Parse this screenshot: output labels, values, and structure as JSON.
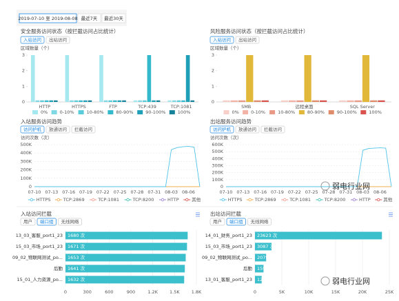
{
  "toolbar": {
    "date_range": "2019-07-10 至 2019-08-08",
    "buttons": [
      "最近7天",
      "最近30天"
    ]
  },
  "watermark": "弱电行业网",
  "chart_data": [
    {
      "type": "bar",
      "title": "安全服务访问状态（按拦截访问占比统计）",
      "tabs": [
        "入站访问",
        "出站访问"
      ],
      "selected_tab": 0,
      "ylabel": "区域数量（个）",
      "categories": [
        "HTTP",
        "HTTPS",
        "FTP",
        "TCP:439",
        "TCP:1081"
      ],
      "series": [
        {
          "name": "0%",
          "color": "#a6e8ef",
          "values": [
            3,
            3,
            3,
            0.1,
            0.1
          ]
        },
        {
          "name": "0-10%",
          "color": "#7ed8e3",
          "values": [
            0.1,
            0.1,
            0.1,
            0.1,
            0.1
          ]
        },
        {
          "name": "10-80%",
          "color": "#5ccbd9",
          "values": [
            0.1,
            0.1,
            0.1,
            0.1,
            0.1
          ]
        },
        {
          "name": "80-90%",
          "color": "#34b9cc",
          "values": [
            0.1,
            0.1,
            0.1,
            3,
            0.1
          ]
        },
        {
          "name": "90-100%",
          "color": "#1fa0b7",
          "values": [
            0.1,
            0.1,
            0.1,
            0.1,
            3
          ]
        },
        {
          "name": "100%",
          "color": "#17839a",
          "values": [
            0.1,
            0.1,
            0.1,
            0.1,
            0.1
          ]
        }
      ],
      "ylim": [
        0,
        3
      ],
      "yticks": [
        0,
        1,
        2,
        3
      ],
      "grid": false
    },
    {
      "type": "bar",
      "title": "风险服务访问状态（按拦截访问占比统计）",
      "tabs": [
        "入站访问",
        "出站访问"
      ],
      "selected_tab": 0,
      "ylabel": "区域数量（个）",
      "categories": [
        "SMB",
        "远程桌面",
        "SQL Server"
      ],
      "series": [
        {
          "name": "0%",
          "color": "#f6cfc8",
          "values": [
            0.1,
            0.1,
            0.1
          ]
        },
        {
          "name": "0-10%",
          "color": "#f2b3a6",
          "values": [
            0.1,
            0.1,
            0.1
          ]
        },
        {
          "name": "10-80%",
          "color": "#e99a86",
          "values": [
            0.1,
            0.1,
            0.1
          ]
        },
        {
          "name": "80-90%",
          "color": "#e2b83a",
          "values": [
            3,
            3,
            3
          ]
        },
        {
          "name": "90-100%",
          "color": "#e08b6a",
          "values": [
            0.1,
            0.1,
            0.1
          ]
        },
        {
          "name": "100%",
          "color": "#d9534f",
          "values": [
            0.1,
            0.1,
            0.1
          ]
        }
      ],
      "ylim": [
        0,
        3
      ],
      "yticks": [
        0,
        1,
        2,
        3
      ],
      "grid": false
    },
    {
      "type": "line",
      "title": "入站服务访问趋势",
      "tabs": [
        "访问护机",
        "放通访问",
        "拦截访问"
      ],
      "selected_tab": 0,
      "ylabel": "访问次数（次）",
      "categories": [
        "07-10",
        null,
        null,
        "07-13",
        null,
        null,
        "07-16",
        null,
        null,
        "07-19",
        null,
        null,
        "07-22",
        null,
        null,
        "07-25",
        null,
        null,
        "07-28",
        null,
        null,
        "07-31",
        null,
        null,
        "08-03",
        null,
        null,
        "08-06",
        null,
        null
      ],
      "series": [
        {
          "name": "HTTPS",
          "color": "#4fc3e8",
          "values": [
            0,
            0,
            0,
            0,
            0,
            0,
            0,
            0,
            0,
            0,
            0,
            0,
            0,
            0,
            0,
            0,
            0,
            0,
            0,
            0,
            0,
            0,
            0,
            0,
            440000,
            465000,
            475000,
            480000,
            470000,
            0
          ]
        },
        {
          "name": "TCP:2869",
          "color": "#f0ad4e",
          "values": [
            0,
            0,
            0,
            0,
            0,
            0,
            0,
            0,
            0,
            0,
            0,
            0,
            0,
            0,
            0,
            0,
            0,
            0,
            0,
            0,
            0,
            0,
            0,
            0,
            0,
            0,
            0,
            0,
            0,
            0
          ]
        },
        {
          "name": "TCP:1081",
          "color": "#f19a8c",
          "values": [
            0,
            0,
            0,
            0,
            0,
            0,
            0,
            0,
            0,
            0,
            0,
            0,
            0,
            0,
            0,
            0,
            0,
            0,
            0,
            0,
            0,
            0,
            0,
            0,
            0,
            0,
            0,
            0,
            0,
            0
          ]
        },
        {
          "name": "TCP:8200",
          "color": "#3fbfb3",
          "values": [
            0,
            0,
            0,
            0,
            0,
            0,
            0,
            0,
            0,
            0,
            0,
            0,
            0,
            0,
            0,
            0,
            0,
            0,
            0,
            0,
            0,
            0,
            0,
            0,
            0,
            0,
            0,
            0,
            0,
            0
          ]
        },
        {
          "name": "HTTP",
          "color": "#9b7fd1",
          "values": [
            0,
            0,
            0,
            0,
            0,
            0,
            0,
            0,
            0,
            0,
            0,
            0,
            0,
            0,
            0,
            0,
            0,
            0,
            0,
            0,
            0,
            0,
            0,
            0,
            0,
            0,
            0,
            0,
            0,
            0
          ]
        },
        {
          "name": "其他",
          "color": "#d9534f",
          "values": [
            0,
            0,
            0,
            0,
            0,
            0,
            0,
            0,
            0,
            0,
            0,
            0,
            0,
            0,
            0,
            0,
            0,
            0,
            0,
            0,
            0,
            0,
            0,
            0,
            0,
            0,
            0,
            0,
            0,
            0
          ]
        }
      ],
      "ylim": [
        0,
        500000
      ],
      "yticks": [
        0,
        {
          "value": 100000,
          "label": "100K"
        },
        {
          "value": 200000,
          "label": "200K"
        },
        {
          "value": 300000,
          "label": "300K"
        },
        {
          "value": 400000,
          "label": "400K"
        },
        {
          "value": 500000,
          "label": "500K"
        }
      ],
      "grid": true
    },
    {
      "type": "line",
      "title": "出站服务访问趋势",
      "tabs": [
        "访问护机",
        "放通访问",
        "拦截访问"
      ],
      "selected_tab": 0,
      "ylabel": "访问次数（次）",
      "categories": [
        "07-10",
        null,
        null,
        "07-13",
        null,
        null,
        "07-16",
        null,
        null,
        "07-19",
        null,
        null,
        "07-22",
        null,
        null,
        "07-25",
        null,
        null,
        "07-28",
        null,
        null,
        "07-31",
        null,
        null,
        "08-03",
        null,
        null,
        "08-06",
        null,
        null
      ],
      "series": [
        {
          "name": "HTTPS",
          "color": "#4fc3e8",
          "values": [
            0,
            0,
            0,
            0,
            0,
            0,
            0,
            0,
            0,
            0,
            0,
            0,
            0,
            0,
            0,
            0,
            0,
            0,
            0,
            0,
            0,
            0,
            0,
            0,
            520000,
            545000,
            550000,
            555000,
            550000,
            0
          ]
        },
        {
          "name": "TCP:2869",
          "color": "#f0ad4e",
          "values": [
            0,
            0,
            0,
            0,
            0,
            0,
            0,
            0,
            0,
            0,
            0,
            0,
            0,
            0,
            0,
            0,
            0,
            0,
            0,
            0,
            0,
            0,
            0,
            0,
            0,
            0,
            0,
            0,
            0,
            0
          ]
        },
        {
          "name": "TCP:1081",
          "color": "#f19a8c",
          "values": [
            0,
            0,
            0,
            0,
            0,
            0,
            0,
            0,
            0,
            0,
            0,
            0,
            0,
            0,
            0,
            0,
            0,
            0,
            0,
            0,
            0,
            0,
            0,
            0,
            0,
            0,
            0,
            0,
            0,
            0
          ]
        },
        {
          "name": "TCP:8200",
          "color": "#3fbfb3",
          "values": [
            0,
            0,
            0,
            0,
            0,
            0,
            0,
            0,
            0,
            0,
            0,
            0,
            0,
            0,
            0,
            0,
            0,
            0,
            0,
            0,
            0,
            0,
            0,
            0,
            0,
            0,
            0,
            0,
            0,
            0
          ]
        },
        {
          "name": "HTTP",
          "color": "#9b7fd1",
          "values": [
            0,
            0,
            0,
            0,
            0,
            0,
            0,
            0,
            0,
            0,
            0,
            0,
            0,
            0,
            0,
            0,
            0,
            0,
            0,
            0,
            0,
            0,
            0,
            0,
            0,
            0,
            0,
            0,
            0,
            0
          ]
        },
        {
          "name": "其他",
          "color": "#d9534f",
          "values": [
            0,
            0,
            0,
            0,
            0,
            0,
            0,
            0,
            0,
            0,
            0,
            0,
            0,
            0,
            0,
            0,
            0,
            0,
            0,
            0,
            0,
            0,
            0,
            0,
            0,
            0,
            0,
            0,
            0,
            0
          ]
        }
      ],
      "ylim": [
        0,
        600000
      ],
      "yticks": [
        0,
        {
          "value": 100000,
          "label": "100K"
        },
        {
          "value": 200000,
          "label": "200K"
        },
        {
          "value": 300000,
          "label": "300K"
        },
        {
          "value": 400000,
          "label": "400K"
        },
        {
          "value": 500000,
          "label": "500K"
        },
        {
          "value": 600000,
          "label": "600K"
        }
      ],
      "grid": true
    },
    {
      "type": "hbar",
      "title": "入站访问拦截",
      "tabs": [
        "用户",
        "端口组",
        "无线网络"
      ],
      "selected_tab": 1,
      "categories": [
        "13_03_客服_port1_23",
        "15_03_市场_port1_23",
        "09_02_物联网测试_po...",
        "后勤",
        "15_01_人力资源_po..."
      ],
      "values": [
        1680,
        1671,
        1653,
        1641,
        1632
      ],
      "value_labels": [
        "1680 次",
        "1671 次",
        "1653 次",
        "1641 次",
        "1632 次"
      ],
      "color": "#3cbfcc",
      "xlim": [
        0,
        1800
      ],
      "xticks": [
        0,
        300,
        600,
        900,
        {
          "value": 1200,
          "label": "1.2K"
        },
        {
          "value": 1500,
          "label": "1.5K"
        },
        {
          "value": 1800,
          "label": "1.8K"
        }
      ],
      "grid": true
    },
    {
      "type": "hbar",
      "title": "出站访问拦截",
      "tabs": [
        "用户",
        "端口组",
        "无线网络"
      ],
      "selected_tab": 1,
      "categories": [
        "14_01_财务_port1_23",
        "15_03_市场_port1_23",
        "09_02_物联网测试_po...",
        "后勤",
        "13_01_客服_port1_23"
      ],
      "values": [
        23623,
        3087,
        2079,
        1594,
        1247
      ],
      "value_labels": [
        "23623 次",
        "3087 次",
        "2079 次",
        "1594 次",
        "1247 次"
      ],
      "color": "#3cbfcc",
      "xlim": [
        0,
        25000
      ],
      "xticks": [
        0,
        {
          "value": 5000,
          "label": "5K"
        },
        {
          "value": 10000,
          "label": "10K"
        },
        {
          "value": 15000,
          "label": "15K"
        },
        {
          "value": 20000,
          "label": "20K"
        },
        {
          "value": 25000,
          "label": "25K"
        }
      ],
      "grid": true
    }
  ]
}
